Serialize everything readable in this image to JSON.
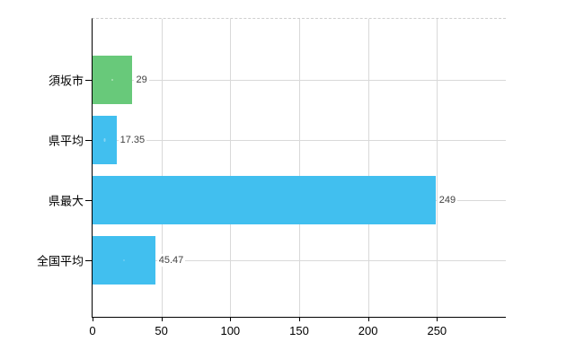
{
  "chart_data": {
    "type": "bar",
    "orientation": "horizontal",
    "title": "",
    "xlabel": "",
    "ylabel": "",
    "categories": [
      "須坂市",
      "県平均",
      "県最大",
      "全国平均"
    ],
    "values": [
      29,
      17.35,
      249,
      45.47
    ],
    "value_labels": [
      "29",
      "17.35",
      "249",
      "45.47"
    ],
    "bar_colors": [
      "#68c97a",
      "#41bfef",
      "#41bfef",
      "#41bfef"
    ],
    "x_tick_labels": [
      "0",
      "50",
      "100",
      "150",
      "200",
      "250"
    ],
    "x_tick_values": [
      0,
      50,
      100,
      150,
      200,
      250
    ],
    "xlim": [
      0,
      300
    ],
    "grid": true,
    "legend": false,
    "axis_color": "#000000",
    "gridline_color": "#d9d9d9",
    "background_color": "#ffffff"
  }
}
